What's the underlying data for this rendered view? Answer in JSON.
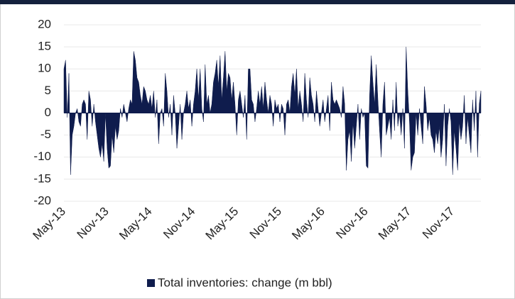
{
  "chart_data": {
    "type": "area",
    "categories": [
      "May-13",
      null,
      null,
      null,
      null,
      null,
      null,
      null,
      null,
      null,
      null,
      null,
      null,
      null,
      null,
      null,
      null,
      null,
      null,
      null,
      null,
      null,
      null,
      null,
      null,
      null,
      "Nov-13",
      null,
      null,
      null,
      null,
      null,
      null,
      null,
      null,
      null,
      null,
      null,
      null,
      null,
      null,
      null,
      null,
      null,
      null,
      null,
      null,
      null,
      null,
      null,
      null,
      null,
      "May-14",
      null,
      null,
      null,
      null,
      null,
      null,
      null,
      null,
      null,
      null,
      null,
      null,
      null,
      null,
      null,
      null,
      null,
      null,
      null,
      null,
      null,
      null,
      null,
      null,
      null,
      "Nov-14",
      null,
      null,
      null,
      null,
      null,
      null,
      null,
      null,
      null,
      null,
      null,
      null,
      null,
      null,
      null,
      null,
      null,
      null,
      null,
      null,
      null,
      null,
      null,
      null,
      null,
      "May-15",
      null,
      null,
      null,
      null,
      null,
      null,
      null,
      null,
      null,
      null,
      null,
      null,
      null,
      null,
      null,
      null,
      null,
      null,
      null,
      null,
      null,
      null,
      null,
      null,
      null,
      "Nov-15",
      null,
      null,
      null,
      null,
      null,
      null,
      null,
      null,
      null,
      null,
      null,
      null,
      null,
      null,
      null,
      null,
      null,
      null,
      null,
      null,
      null,
      null,
      null,
      null,
      null,
      "May-16",
      null,
      null,
      null,
      null,
      null,
      null,
      null,
      null,
      null,
      null,
      null,
      null,
      null,
      null,
      null,
      null,
      null,
      null,
      null,
      null,
      null,
      null,
      null,
      null,
      null,
      "Nov-16",
      null,
      null,
      null,
      null,
      null,
      null,
      null,
      null,
      null,
      null,
      null,
      null,
      null,
      null,
      null,
      null,
      null,
      null,
      null,
      null,
      null,
      null,
      null,
      null,
      null,
      "May-17",
      null,
      null,
      null,
      null,
      null,
      null,
      null,
      null,
      null,
      null,
      null,
      null,
      null,
      null,
      null,
      null,
      null,
      null,
      null,
      null,
      null,
      null,
      null,
      null,
      null,
      "Nov-17",
      null,
      null,
      null,
      null,
      null,
      null,
      null,
      null,
      null,
      null,
      null,
      null,
      null,
      null,
      null,
      null,
      null
    ],
    "series": [
      {
        "name": "Total inventories: change (m bbl)",
        "color": "#0f1c4d",
        "values": [
          10,
          12,
          -1,
          9,
          -14,
          -5,
          -3,
          0,
          1,
          -2,
          -3,
          2,
          3,
          2,
          -6,
          5,
          3,
          -3,
          2,
          -2,
          -5,
          -8,
          -10,
          -7,
          -11,
          0,
          -8,
          -12.5,
          -12,
          -5,
          -9,
          -3,
          -6,
          -4,
          1,
          -1,
          2,
          0,
          -2,
          1,
          3,
          2,
          14,
          12,
          8,
          7,
          4,
          2,
          6,
          5,
          3,
          2,
          4,
          1,
          5,
          -1,
          3,
          -7,
          0,
          1,
          -3,
          9,
          5,
          -1,
          2,
          -5,
          4,
          0,
          -8,
          -3,
          2,
          -6,
          0,
          2,
          5,
          1,
          3,
          -3,
          2,
          5,
          10,
          3,
          10,
          1,
          -2,
          11,
          2,
          4,
          0,
          2,
          7,
          9,
          12,
          6,
          13,
          3,
          8,
          14,
          5,
          9,
          8,
          3,
          7,
          2,
          -5,
          3,
          5,
          2,
          -1,
          4,
          -6,
          10,
          10,
          3,
          2,
          -2,
          1,
          5,
          2,
          6,
          1,
          7,
          3,
          0,
          4,
          2,
          -3,
          3,
          1,
          2,
          -2,
          2,
          1,
          -5,
          2,
          3,
          0,
          6,
          9,
          4,
          10,
          1,
          5,
          2,
          -2,
          9,
          3,
          -1,
          8,
          4,
          2,
          -2,
          5,
          1,
          -3,
          0,
          3,
          -2,
          1,
          4,
          -4,
          7,
          3,
          2,
          3,
          2,
          1,
          -1,
          6,
          2,
          -13,
          -6,
          -4,
          -11,
          -2,
          -8,
          -3,
          2,
          -6,
          1,
          -1,
          0,
          -12,
          -12.5,
          4,
          13,
          7,
          2,
          11,
          3,
          -4,
          -10,
          2,
          7,
          -5,
          -3,
          -1,
          -6,
          3,
          -4,
          7,
          -3,
          0,
          -5,
          1,
          -8,
          15,
          5,
          -2,
          -13,
          -10,
          -9,
          0,
          -5,
          1,
          -3,
          -7,
          6,
          2,
          -4,
          -1,
          -5,
          -6,
          -9,
          -4,
          -7,
          -3,
          -10,
          -6,
          2,
          -12,
          -3,
          1,
          -2,
          -14,
          -4,
          -8,
          -13,
          -2,
          -6,
          -3,
          4,
          -7,
          -1,
          -5,
          -9,
          3,
          -4,
          5,
          -10,
          2,
          5
        ]
      }
    ],
    "ylim": [
      -20,
      20
    ],
    "yticks": [
      -20,
      -15,
      -10,
      -5,
      0,
      5,
      10,
      15,
      20
    ],
    "grid": true,
    "legend": "bottom"
  }
}
